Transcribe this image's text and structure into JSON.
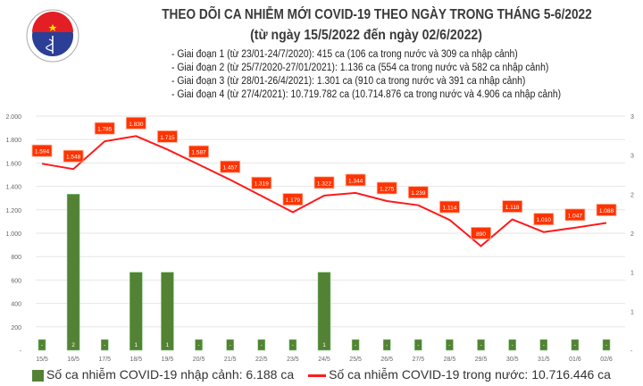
{
  "header": {
    "logo_text": "BỘ Y TẾ · MINISTRY OF HEALTH",
    "title": "THEO DÕI CA NHIỄM MỚI COVID-19 THEO NGÀY TRONG THÁNG 5-6/2022",
    "subtitle": "(từ ngày 15/5/2022 đến ngày 02/6/2022)",
    "notes": [
      "- Giai đoạn 1 (từ 23/01-24/7/2020): 415 ca (106 ca trong nước và 309 ca nhập cảnh)",
      "- Giai đoạn 2 (từ 25/7/2020-27/01/2021): 1.136 ca (554 ca trong nước và 582 ca nhập cảnh)",
      "- Giai đoạn 3 (từ 28/01-26/4/2021): 1.301 ca (910 ca trong nước và 391 ca nhập cảnh)",
      "- Giai đoạn 4 (từ 27/4/2021): 10.719.782 ca (10.714.876 ca trong nước và 4.906 ca nhập cảnh)"
    ]
  },
  "chart_data": {
    "type": "bar+line",
    "categories": [
      "15/5",
      "16/5",
      "17/5",
      "18/5",
      "19/5",
      "20/5",
      "21/5",
      "22/5",
      "23/5",
      "24/5",
      "25/5",
      "26/5",
      "27/5",
      "28/5",
      "29/5",
      "30/5",
      "31/5",
      "01/6",
      "02/6"
    ],
    "series": [
      {
        "name": "Số ca nhiễm COVID-19 nhập cảnh: 6.188 ca",
        "type": "bar",
        "axis": "right",
        "color": "#548235",
        "values": [
          0,
          2,
          0,
          1,
          1,
          0,
          0,
          0,
          0,
          1,
          0,
          0,
          0,
          0,
          0,
          0,
          0,
          0,
          0
        ],
        "labels": [
          "-",
          "2",
          "-",
          "1",
          "1",
          "-",
          "-",
          "-",
          "-",
          "1",
          "-",
          "-",
          "-",
          "-",
          "-",
          "-",
          "-",
          "-",
          "-"
        ]
      },
      {
        "name": "Số ca nhiễm COVID-19 trong nước: 10.716.446 ca",
        "type": "line",
        "axis": "left",
        "color": "#ff1a1a",
        "values": [
          1594,
          1548,
          1785,
          1830,
          1715,
          1587,
          1457,
          1319,
          1179,
          1322,
          1344,
          1275,
          1239,
          1114,
          890,
          1118,
          1010,
          1047,
          1088
        ],
        "labels": [
          "1.594",
          "1.548",
          "1.785",
          "1.830",
          "1.715",
          "1.587",
          "1.457",
          "1.319",
          "1.179",
          "1.322",
          "1.344",
          "1.275",
          "1.239",
          "1.114",
          "890",
          "1.118",
          "1.010",
          "1.047",
          "1.088"
        ]
      }
    ],
    "y_left": {
      "range": [
        0,
        2000
      ],
      "ticks": [
        "-",
        "200",
        "400",
        "600",
        "800",
        "1.000",
        "1.200",
        "1.400",
        "1.600",
        "1.800",
        "2.000"
      ]
    },
    "y_right": {
      "range": [
        0,
        3
      ],
      "ticks": [
        "-",
        "1",
        "1",
        "2",
        "2",
        "3",
        "3"
      ]
    },
    "grid": true,
    "legend": "bottom",
    "label_box_color": "#ff3300"
  }
}
